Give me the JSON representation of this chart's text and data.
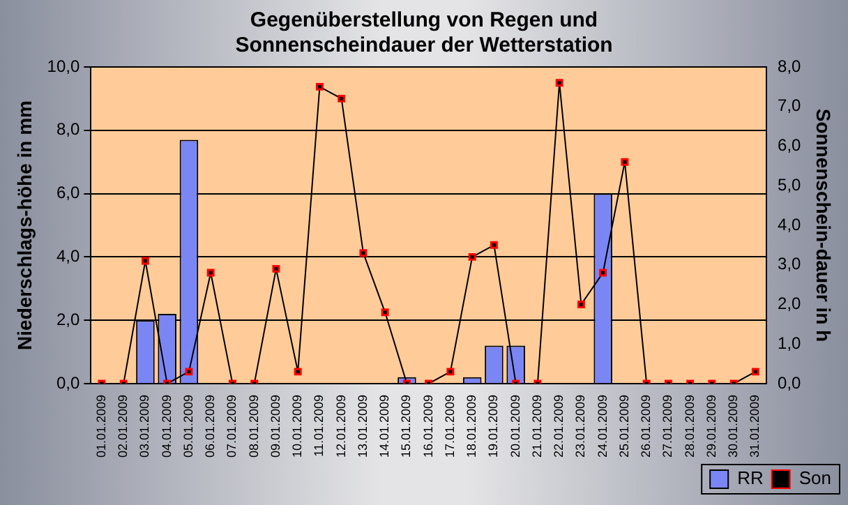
{
  "chart_data": {
    "type": "bar",
    "title": "Gegenüberstellung von Regen und\nSonnenscheindauer der Wetterstation",
    "ylabel": "Niederschlags-höhe in mm",
    "y2label": "Sonnenschein-dauer in h",
    "categories": [
      "01.01.2009",
      "02.01.2009",
      "03.01.2009",
      "04.01.2009",
      "05.01.2009",
      "06.01.2009",
      "07.01.2009",
      "08.01.2009",
      "09.01.2009",
      "10.01.2009",
      "11.01.2009",
      "12.01.2009",
      "13.01.2009",
      "14.01.2009",
      "15.01.2009",
      "16.01.2009",
      "17.01.2009",
      "18.01.2009",
      "19.01.2009",
      "20.01.2009",
      "21.01.2009",
      "22.01.2009",
      "23.01.2009",
      "24.01.2009",
      "25.01.2009",
      "26.01.2009",
      "27.01.2009",
      "28.01.2009",
      "29.01.2009",
      "30.01.2009",
      "31.01.2009"
    ],
    "series": [
      {
        "name": "RR",
        "color": "#7b86f5",
        "values": [
          null,
          null,
          2.0,
          2.2,
          7.7,
          null,
          null,
          null,
          null,
          null,
          null,
          null,
          null,
          null,
          0.2,
          null,
          null,
          0.2,
          1.2,
          1.2,
          null,
          null,
          null,
          6.0,
          null,
          null,
          null,
          null,
          null,
          null,
          null
        ]
      },
      {
        "name": "Son",
        "type": "line",
        "axis": "y2",
        "color": "#000000",
        "marker": "square",
        "values": [
          0,
          0,
          3.1,
          0,
          0.3,
          2.8,
          0,
          0,
          2.9,
          0.3,
          7.5,
          7.2,
          3.3,
          1.8,
          0,
          0,
          0.3,
          3.2,
          3.5,
          0,
          0,
          7.6,
          2.0,
          2.8,
          5.6,
          0,
          0,
          0,
          0,
          0,
          0.3
        ]
      }
    ],
    "ylim": [
      0,
      10
    ],
    "yticks": [
      {
        "value": 0,
        "label": "0,0"
      },
      {
        "value": 2,
        "label": "2,0"
      },
      {
        "value": 4,
        "label": "4,0"
      },
      {
        "value": 6,
        "label": "6,0"
      },
      {
        "value": 8,
        "label": "8,0"
      },
      {
        "value": 10,
        "label": "10,0"
      }
    ],
    "y2lim": [
      0,
      8
    ],
    "y2ticks": [
      {
        "value": 0,
        "label": "0,0"
      },
      {
        "value": 1,
        "label": "1,0"
      },
      {
        "value": 2,
        "label": "2,0"
      },
      {
        "value": 3,
        "label": "3,0"
      },
      {
        "value": 4,
        "label": "4,0"
      },
      {
        "value": 5,
        "label": "5,0"
      },
      {
        "value": 6,
        "label": "6,0"
      },
      {
        "value": 7,
        "label": "7,0"
      },
      {
        "value": 8,
        "label": "8,0"
      }
    ],
    "grid": "y",
    "legend": "bottom right"
  }
}
